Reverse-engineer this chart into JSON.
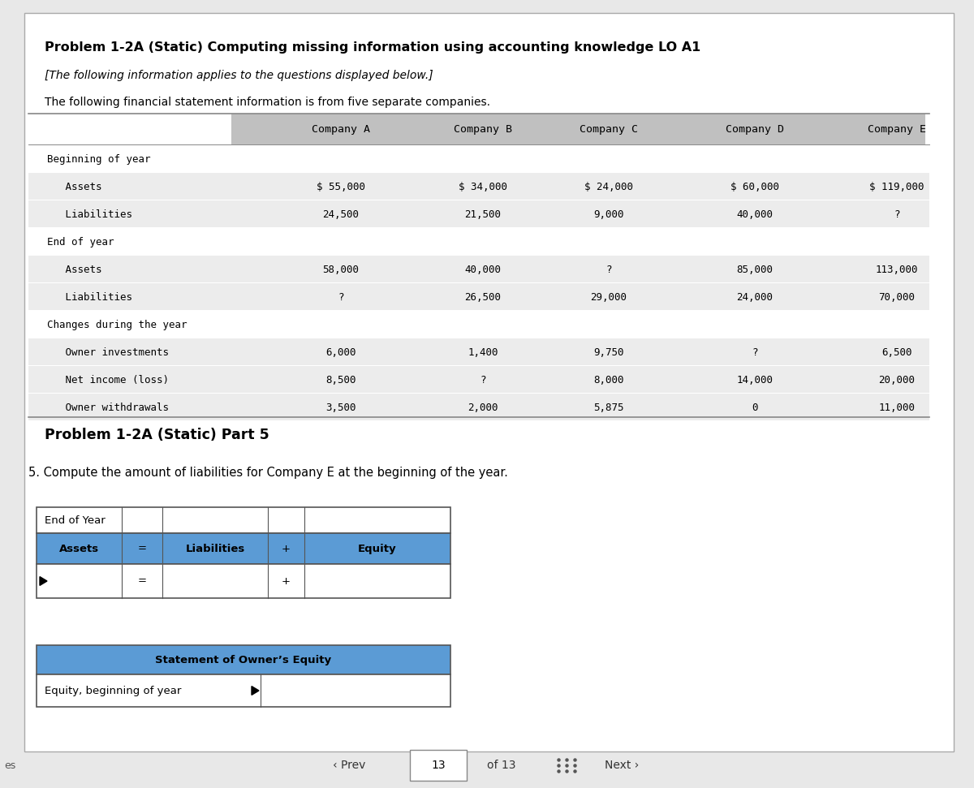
{
  "bg_color": "#d9d9d9",
  "page_bg": "#f0f0f0",
  "title": "Problem 1-2A (Static) Computing missing information using accounting knowledge LO A1",
  "subtitle": "[The following information applies to the questions displayed below.]",
  "intro": "The following financial statement information is from five separate companies.",
  "companies": [
    "Company A",
    "Company B",
    "Company C",
    "Company D",
    "Company E"
  ],
  "row_labels": [
    "Beginning of year",
    "   Assets",
    "   Liabilities",
    "End of year",
    "   Assets",
    "   Liabilities",
    "Changes during the year",
    "   Owner investments",
    "   Net income (loss)",
    "   Owner withdrawals"
  ],
  "data": [
    [
      "",
      "",
      "",
      "",
      ""
    ],
    [
      "$ 55,000",
      "$ 34,000",
      "$ 24,000",
      "$ 60,000",
      "$ 119,000"
    ],
    [
      "24,500",
      "21,500",
      "9,000",
      "40,000",
      "?"
    ],
    [
      "",
      "",
      "",
      "",
      ""
    ],
    [
      "58,000",
      "40,000",
      "?",
      "85,000",
      "113,000"
    ],
    [
      "?",
      "26,500",
      "29,000",
      "24,000",
      "70,000"
    ],
    [
      "",
      "",
      "",
      "",
      ""
    ],
    [
      "6,000",
      "1,400",
      "9,750",
      "?",
      "6,500"
    ],
    [
      "8,500",
      "?",
      "8,000",
      "14,000",
      "20,000"
    ],
    [
      "3,500",
      "2,000",
      "5,875",
      "0",
      "11,000"
    ]
  ],
  "table_header_bg": "#b8b8b8",
  "table_row_bg": "#e8e8e8",
  "part5_title": "Problem 1-2A (Static) Part 5",
  "question5": "5. Compute the amount of liabilities for Company E at the beginning of the year.",
  "end_of_year_label": "End of Year",
  "accounting_eq_headers": [
    "Assets",
    "=",
    "Liabilities",
    "+",
    "Equity"
  ],
  "accounting_eq_bg": "#5b9bd5",
  "stmt_equity_header": "Statement of Owner’s Equity",
  "stmt_equity_row": "Equity, beginning of year",
  "stmt_equity_bg": "#5b9bd5",
  "nav_page": "13",
  "nav_total": "of 13"
}
